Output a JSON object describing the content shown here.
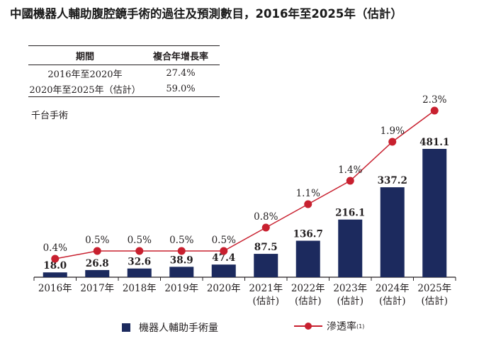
{
  "title": "中國機器人輔助腹腔鏡手術的過往及預測數目，2016年至2025年（估計）",
  "cagr_table": {
    "headers": [
      "期間",
      "複合年增長率"
    ],
    "rows": [
      {
        "period": "2016年至2020年",
        "rate": "27.4%"
      },
      {
        "period": "2020年至2025年（估計）",
        "rate": "59.0%"
      }
    ]
  },
  "unit_label": "千台手術",
  "legend": {
    "volume": "機器人輔助手術量",
    "penetration": "滲透率",
    "penetration_note": "(1)"
  },
  "colors": {
    "bar": "#1c2a5e",
    "line": "#c8202f",
    "axis": "#231f20"
  },
  "chart_data": {
    "type": "bar+line",
    "categories": [
      "2016年",
      "2017年",
      "2018年",
      "2019年",
      "2020年",
      "2021年\n(估計)",
      "2022年\n(估計)",
      "2023年\n(估計)",
      "2024年\n(估計)",
      "2025年\n(估計)"
    ],
    "series": [
      {
        "name": "機器人輔助手術量",
        "type": "bar",
        "values": [
          18.0,
          26.8,
          32.6,
          38.9,
          47.4,
          87.5,
          136.7,
          216.1,
          337.2,
          481.1
        ],
        "labels": [
          "18.0",
          "26.8",
          "32.6",
          "38.9",
          "47.4",
          "87.5",
          "136.7",
          "216.1",
          "337.2",
          "481.1"
        ]
      },
      {
        "name": "滲透率",
        "type": "line",
        "values": [
          0.4,
          0.5,
          0.5,
          0.5,
          0.5,
          0.8,
          1.1,
          1.4,
          1.9,
          2.3
        ],
        "labels": [
          "0.4%",
          "0.5%",
          "0.5%",
          "0.5%",
          "0.5%",
          "0.8%",
          "1.1%",
          "1.4%",
          "1.9%",
          "2.3%"
        ]
      }
    ],
    "ylabel": "千台手術",
    "bar_ylim": [
      0,
      500
    ],
    "line_ylim": [
      0,
      2.5
    ]
  }
}
